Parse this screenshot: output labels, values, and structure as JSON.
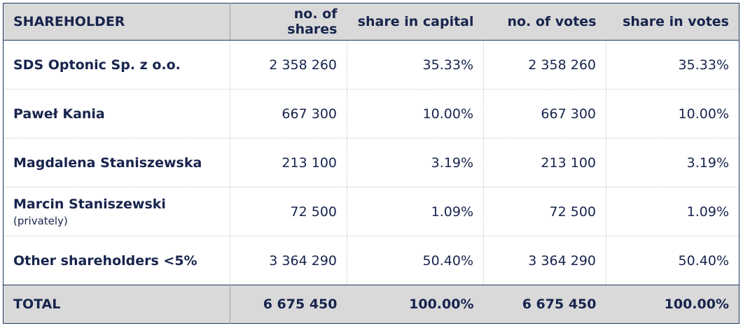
{
  "table": {
    "header": [
      "SHAREHOLDER",
      "no. of shares",
      "share in capital",
      "no. of votes",
      "share in votes"
    ],
    "rows": [
      {
        "name": "SDS Optonic Sp. z o.o.",
        "cells": [
          "2 358 260",
          "35.33%",
          "2 358 260",
          "35.33%"
        ]
      },
      {
        "name": "Paweł Kania",
        "cells": [
          "667 300",
          "10.00%",
          "667 300",
          "10.00%"
        ]
      },
      {
        "name": "Magdalena Staniszewska",
        "cells": [
          "213 100",
          "3.19%",
          "213 100",
          "3.19%"
        ]
      },
      {
        "name": "Marcin Staniszewski",
        "note": "(privately)",
        "cells": [
          "72 500",
          "1.09%",
          "72 500",
          "1.09%"
        ]
      },
      {
        "name": "Other shareholders <5%",
        "cells": [
          "3 364 290",
          "50.40%",
          "3 364 290",
          "50.40%"
        ]
      }
    ],
    "total": {
      "label": "TOTAL",
      "cells": [
        "6 675 450",
        "100.00%",
        "6 675 450",
        "100.00%"
      ]
    }
  }
}
